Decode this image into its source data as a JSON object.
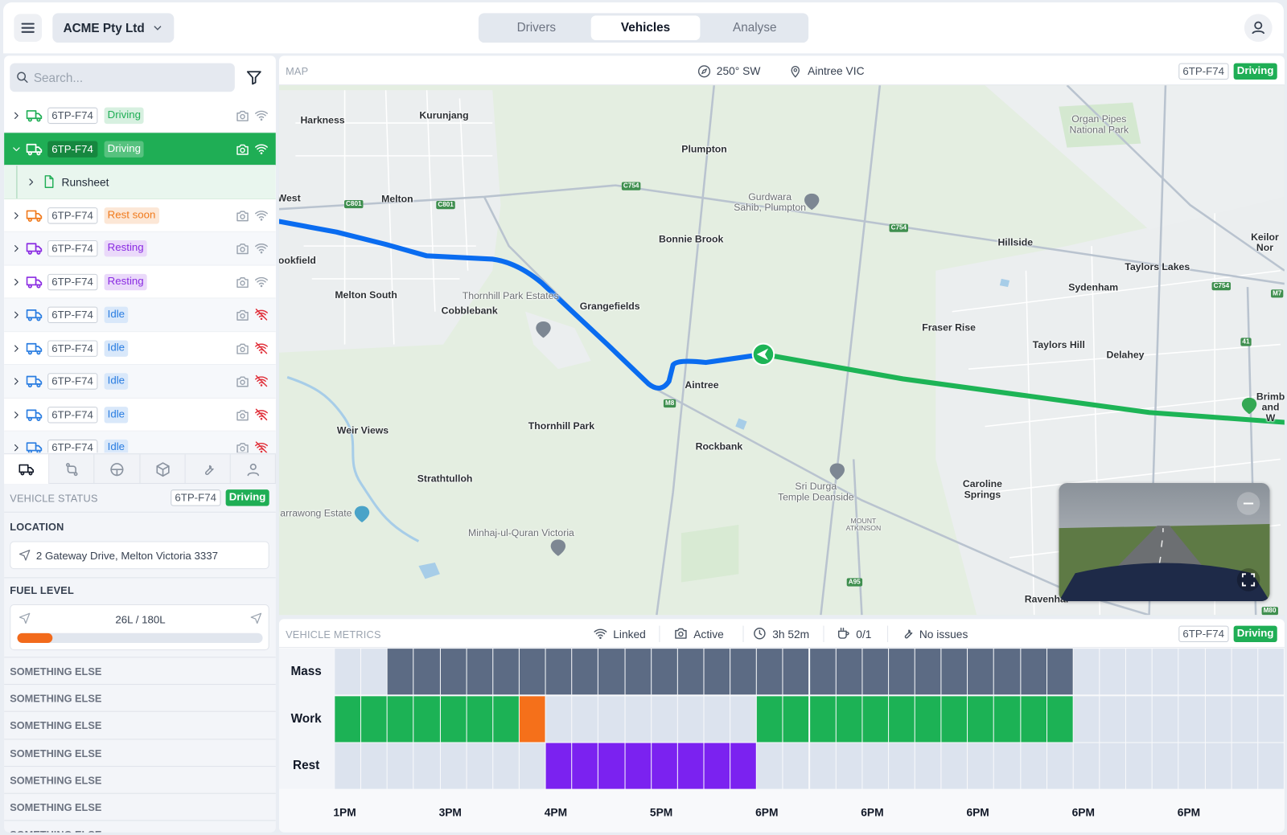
{
  "header": {
    "company": "ACME Pty Ltd",
    "tabs": [
      {
        "label": "Drivers"
      },
      {
        "label": "Vehicles",
        "selected": true
      },
      {
        "label": "Analyse"
      }
    ]
  },
  "sidebar": {
    "search_placeholder": "Search...",
    "vehicles": [
      {
        "plate": "6TP-F74",
        "status": "Driving",
        "color": "#1fae55",
        "connected": true
      },
      {
        "plate": "6TP-F74",
        "status": "Driving",
        "color": "#1fae55",
        "connected": true,
        "selected": true,
        "expanded": true,
        "children": [
          {
            "label": "Runsheet"
          }
        ]
      },
      {
        "plate": "6TP-F74",
        "status": "Rest soon",
        "color": "#f07a1c",
        "connected": true
      },
      {
        "plate": "6TP-F74",
        "status": "Resting",
        "color": "#8a2be2",
        "connected": true
      },
      {
        "plate": "6TP-F74",
        "status": "Resting",
        "color": "#8a2be2",
        "connected": true
      },
      {
        "plate": "6TP-F74",
        "status": "Idle",
        "color": "#2a7de1",
        "connected": false
      },
      {
        "plate": "6TP-F74",
        "status": "Idle",
        "color": "#2a7de1",
        "connected": false
      },
      {
        "plate": "6TP-F74",
        "status": "Idle",
        "color": "#2a7de1",
        "connected": false
      },
      {
        "plate": "6TP-F74",
        "status": "Idle",
        "color": "#2a7de1",
        "connected": false
      },
      {
        "plate": "6TP-F74",
        "status": "Idle",
        "color": "#2a7de1",
        "connected": false
      }
    ],
    "detail": {
      "vehicle_status": {
        "label": "VEHICLE STATUS",
        "plate": "6TP-F74",
        "status": "Driving",
        "color": "#1fae55"
      },
      "location": {
        "label": "LOCATION",
        "address": "2 Gateway Drive, Melton Victoria 3337"
      },
      "fuel": {
        "label": "FUEL LEVEL",
        "text": "26L / 180L",
        "value": 26,
        "max": 180,
        "color": "#f26a1b"
      },
      "other_sections": [
        "SOMETHING ELSE",
        "SOMETHING ELSE",
        "SOMETHING ELSE",
        "SOMETHING ELSE",
        "SOMETHING ELSE",
        "SOMETHING ELSE",
        "SOMETHING ELSE"
      ]
    }
  },
  "map": {
    "title": "MAP",
    "heading": "250° SW",
    "location": "Aintree VIC",
    "plate": "6TP-F74",
    "status": "Driving",
    "status_color": "#1fae55",
    "places": [
      {
        "label": "Harkness"
      },
      {
        "label": "Kurunjang"
      },
      {
        "label": "Plumpton"
      },
      {
        "label": "Organ Pipes\nNational Park",
        "muted": true
      },
      {
        "label": "West"
      },
      {
        "label": "Melton"
      },
      {
        "label": "Gurdwara\nSahib, Plumpton",
        "muted": true
      },
      {
        "label": "Bonnie Brook"
      },
      {
        "label": "Hillside"
      },
      {
        "label": "Keilor Nor"
      },
      {
        "label": "ookfield"
      },
      {
        "label": "Taylors Lakes"
      },
      {
        "label": "Sydenham"
      },
      {
        "label": "Melton South"
      },
      {
        "label": "Thornhill Park Estates",
        "muted": true
      },
      {
        "label": "Cobblebank"
      },
      {
        "label": "Grangefields"
      },
      {
        "label": "Fraser Rise"
      },
      {
        "label": "Taylors Hill"
      },
      {
        "label": "Delahey"
      },
      {
        "label": "Aintree"
      },
      {
        "label": "Brimb\nand W"
      },
      {
        "label": "Weir Views"
      },
      {
        "label": "Thornhill Park"
      },
      {
        "label": "Rockbank"
      },
      {
        "label": "Strathtulloh"
      },
      {
        "label": "Caroline\nSprings"
      },
      {
        "label": "Sri Durga\nTemple Deanside",
        "muted": true
      },
      {
        "label": "arrawong Estate",
        "muted": true
      },
      {
        "label": "Minhaj-ul-Quran Victoria",
        "muted": true
      },
      {
        "label": "MOUNT\nATKINSON",
        "muted": true
      },
      {
        "label": "Ravenhal"
      }
    ],
    "road_shields": [
      "C801",
      "C801",
      "C754",
      "C754",
      "C754",
      "M8",
      "A95",
      "M80",
      "41",
      "M7"
    ]
  },
  "metrics": {
    "title": "VEHICLE METRICS",
    "indicators": [
      "Linked",
      "Active",
      "3h 52m",
      "0/1",
      "No issues"
    ],
    "plate": "6TP-F74",
    "status": "Driving",
    "status_color": "#1fae55",
    "rows": [
      {
        "label": "Mass",
        "cells": [
          "#dce3ee",
          "#dce3ee",
          "#5c6b84",
          "#5c6b84",
          "#5c6b84",
          "#5c6b84",
          "#5c6b84",
          "#5c6b84",
          "#5c6b84",
          "#5c6b84",
          "#5c6b84",
          "#5c6b84",
          "#5c6b84",
          "#5c6b84",
          "#5c6b84",
          "#5c6b84",
          "#5c6b84",
          "#5c6b84",
          "#5c6b84",
          "#5c6b84",
          "#5c6b84",
          "#5c6b84",
          "#5c6b84",
          "#5c6b84",
          "#5c6b84",
          "#5c6b84",
          "#5c6b84",
          "#5c6b84",
          "#dce3ee",
          "#dce3ee",
          "#dce3ee",
          "#dce3ee",
          "#dce3ee",
          "#dce3ee",
          "#dce3ee",
          "#dce3ee"
        ]
      },
      {
        "label": "Work",
        "cells": [
          "#1cb255",
          "#1cb255",
          "#1cb255",
          "#1cb255",
          "#1cb255",
          "#1cb255",
          "#1cb255",
          "#f5701a",
          "#dce3ee",
          "#dce3ee",
          "#dce3ee",
          "#dce3ee",
          "#dce3ee",
          "#dce3ee",
          "#dce3ee",
          "#dce3ee",
          "#1cb255",
          "#1cb255",
          "#1cb255",
          "#1cb255",
          "#1cb255",
          "#1cb255",
          "#1cb255",
          "#1cb255",
          "#1cb255",
          "#1cb255",
          "#1cb255",
          "#1cb255",
          "#dce3ee",
          "#dce3ee",
          "#dce3ee",
          "#dce3ee",
          "#dce3ee",
          "#dce3ee",
          "#dce3ee",
          "#dce3ee"
        ]
      },
      {
        "label": "Rest",
        "cells": [
          "#dce3ee",
          "#dce3ee",
          "#dce3ee",
          "#dce3ee",
          "#dce3ee",
          "#dce3ee",
          "#dce3ee",
          "#dce3ee",
          "#7b22f0",
          "#7b22f0",
          "#7b22f0",
          "#7b22f0",
          "#7b22f0",
          "#7b22f0",
          "#7b22f0",
          "#7b22f0",
          "#dce3ee",
          "#dce3ee",
          "#dce3ee",
          "#dce3ee",
          "#dce3ee",
          "#dce3ee",
          "#dce3ee",
          "#dce3ee",
          "#dce3ee",
          "#dce3ee",
          "#dce3ee",
          "#dce3ee",
          "#dce3ee",
          "#dce3ee",
          "#dce3ee",
          "#dce3ee",
          "#dce3ee",
          "#dce3ee",
          "#dce3ee",
          "#dce3ee"
        ]
      }
    ],
    "times": [
      "1PM",
      "3PM",
      "4PM",
      "5PM",
      "6PM",
      "6PM",
      "6PM",
      "6PM",
      "6PM"
    ]
  }
}
